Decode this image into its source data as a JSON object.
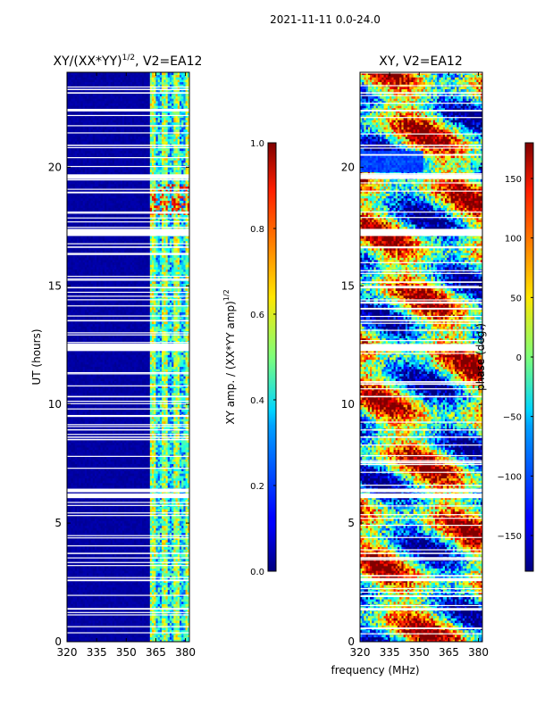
{
  "figure": {
    "suptitle": "2021-11-11 0.0-24.0",
    "xlabel_shared": "frequency (MHz)"
  },
  "chart_data": [
    {
      "type": "heatmap",
      "id": "amp",
      "title": "XY/(XX*YY)",
      "title_superscript": "1/2",
      "title_suffix": ", V2=EA12",
      "ylabel": "UT (hours)",
      "xlim": [
        320,
        382
      ],
      "ylim": [
        0,
        24
      ],
      "xticks": [
        320,
        335,
        350,
        365,
        380
      ],
      "yticks": [
        0,
        5,
        10,
        15,
        20
      ],
      "colormap": "jet",
      "colorbar": {
        "label": "XY amp. / (XX*YY amp)",
        "label_superscript": "1/2",
        "range": [
          0.0,
          1.0
        ],
        "ticks": [
          "0.0",
          "0.2",
          "0.4",
          "0.6",
          "0.8",
          "1.0"
        ],
        "tick_values": [
          0.0,
          0.2,
          0.4,
          0.6,
          0.8,
          1.0
        ]
      },
      "band_start_mhz": 362,
      "gap_hours": [
        [
          6.05,
          6.25
        ],
        [
          6.3,
          6.45
        ],
        [
          12.25,
          12.55
        ],
        [
          17.1,
          17.4
        ],
        [
          19.5,
          19.7
        ],
        [
          2.55,
          2.62
        ],
        [
          1.35,
          1.42
        ],
        [
          10.3,
          10.36
        ],
        [
          16.6,
          16.66
        ],
        [
          22.35,
          22.42
        ],
        [
          3.7,
          3.75
        ],
        [
          8.6,
          8.65
        ],
        [
          13.5,
          13.56
        ],
        [
          14.9,
          14.95
        ],
        [
          20.9,
          20.95
        ],
        [
          23.1,
          23.16
        ]
      ]
    },
    {
      "type": "heatmap",
      "id": "phase",
      "title": "XY, V2=EA12",
      "ylabel": "",
      "xlim": [
        320,
        382
      ],
      "ylim": [
        0,
        24
      ],
      "xticks": [
        320,
        335,
        350,
        365,
        380
      ],
      "yticks": [
        0,
        5,
        10,
        15,
        20
      ],
      "colormap": "jet",
      "colorbar": {
        "label": "phase (deg.)",
        "range": [
          -180,
          180
        ],
        "ticks": [
          "−150",
          "−100",
          "−50",
          "0",
          "50",
          "100",
          "150"
        ],
        "tick_values": [
          -150,
          -100,
          -50,
          0,
          50,
          100,
          150
        ]
      },
      "gap_hours": [
        [
          6.05,
          6.25
        ],
        [
          6.3,
          6.45
        ],
        [
          12.25,
          12.55
        ],
        [
          17.1,
          17.4
        ],
        [
          19.5,
          19.7
        ],
        [
          2.55,
          2.62
        ],
        [
          1.35,
          1.42
        ],
        [
          10.3,
          10.36
        ],
        [
          16.6,
          16.66
        ],
        [
          22.35,
          22.42
        ],
        [
          3.7,
          3.75
        ],
        [
          8.6,
          8.65
        ],
        [
          13.5,
          13.56
        ],
        [
          14.9,
          14.95
        ],
        [
          20.9,
          20.95
        ],
        [
          23.1,
          23.16
        ]
      ]
    }
  ]
}
